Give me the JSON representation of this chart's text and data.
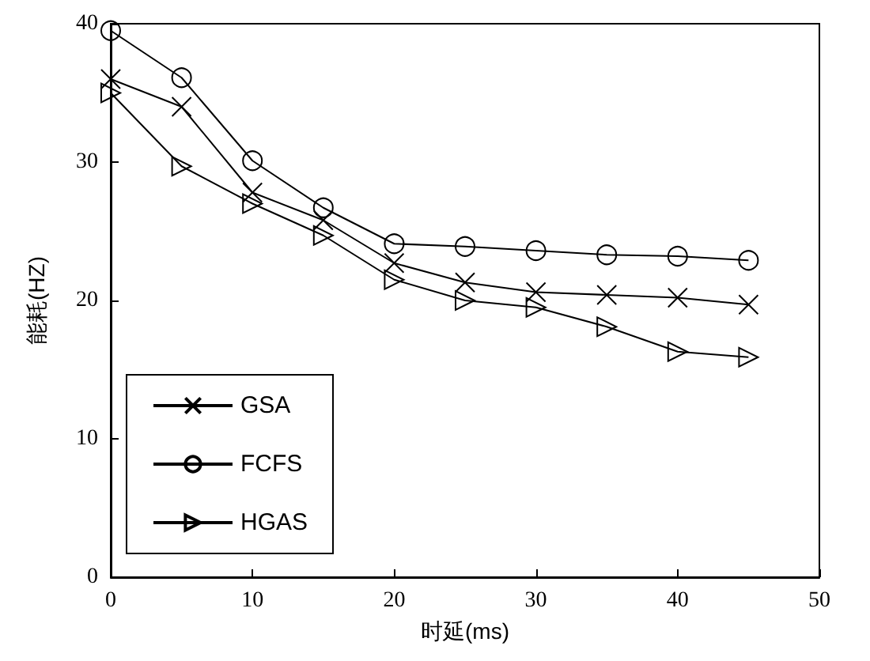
{
  "chart_data": {
    "type": "line",
    "xlabel": "时延(ms)",
    "ylabel": "能耗(HZ)",
    "x": [
      0,
      5,
      10,
      15,
      20,
      25,
      30,
      35,
      40,
      45
    ],
    "series": [
      {
        "name": "GSA",
        "color": "#000000",
        "marker": "cross",
        "values": [
          36,
          34,
          27.8,
          25.8,
          22.7,
          21.3,
          20.6,
          20.4,
          20.2,
          19.7
        ]
      },
      {
        "name": "FCFS",
        "color": "#000000",
        "marker": "circle",
        "values": [
          39.5,
          36.1,
          30.1,
          26.7,
          24.1,
          23.9,
          23.6,
          23.3,
          23.2,
          22.9
        ]
      },
      {
        "name": "HGAS",
        "color": "#000000",
        "marker": "triangle",
        "values": [
          35,
          29.7,
          27,
          24.7,
          21.5,
          20,
          19.5,
          18.1,
          16.3,
          15.9
        ]
      }
    ],
    "xlim": [
      0,
      50
    ],
    "xticks": [
      0,
      10,
      20,
      30,
      40,
      50
    ],
    "ylim": [
      0,
      40
    ],
    "yticks": [
      0,
      10,
      20,
      30,
      40
    ],
    "grid": false,
    "legend": "bottom left",
    "line_style": "solid"
  }
}
